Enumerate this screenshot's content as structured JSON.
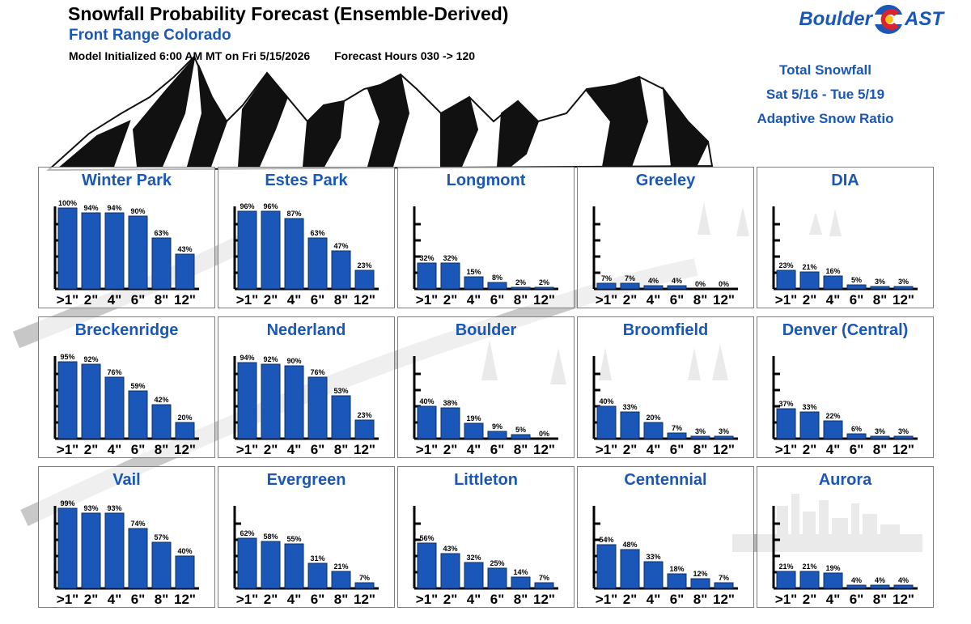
{
  "header": {
    "title": "Snowfall Probability Forecast (Ensemble-Derived)",
    "subtitle": "Front Range Colorado",
    "model_initialized": "Model Initialized 6:00 AM MT on Fri 5/15/2026",
    "forecast_hours": "Forecast Hours 030 -> 120"
  },
  "logo": {
    "left": "Boulder",
    "right": "AST",
    "colors": {
      "blue": "#1a57b8",
      "red": "#d9232e",
      "yellow": "#f5c21b"
    }
  },
  "info_box": {
    "line1": "Total Snowfall",
    "line2": "Sat 5/16 - Tue 5/19",
    "line3": "Adaptive Snow Ratio"
  },
  "colors": {
    "bar": "#1a57b8",
    "title": "#1a57b8",
    "panel_border": "#7d7d7d"
  },
  "chart_data": [
    {
      "type": "bar",
      "title": "Winter Park",
      "categories": [
        ">1\"",
        "2\"",
        "4\"",
        "6\"",
        "8\"",
        "12\""
      ],
      "values": [
        100,
        94,
        94,
        90,
        63,
        43
      ],
      "ylim": [
        0,
        100
      ]
    },
    {
      "type": "bar",
      "title": "Estes Park",
      "categories": [
        ">1\"",
        "2\"",
        "4\"",
        "6\"",
        "8\"",
        "12\""
      ],
      "values": [
        96,
        96,
        87,
        63,
        47,
        23
      ],
      "ylim": [
        0,
        100
      ]
    },
    {
      "type": "bar",
      "title": "Longmont",
      "categories": [
        ">1\"",
        "2\"",
        "4\"",
        "6\"",
        "8\"",
        "12\""
      ],
      "values": [
        32,
        32,
        15,
        8,
        2,
        2
      ],
      "ylim": [
        0,
        100
      ]
    },
    {
      "type": "bar",
      "title": "Greeley",
      "categories": [
        ">1\"",
        "2\"",
        "4\"",
        "6\"",
        "8\"",
        "12\""
      ],
      "values": [
        7,
        7,
        4,
        4,
        0,
        0
      ],
      "ylim": [
        0,
        100
      ]
    },
    {
      "type": "bar",
      "title": "DIA",
      "categories": [
        ">1\"",
        "2\"",
        "4\"",
        "6\"",
        "8\"",
        "12\""
      ],
      "values": [
        23,
        21,
        16,
        5,
        3,
        3
      ],
      "ylim": [
        0,
        100
      ]
    },
    {
      "type": "bar",
      "title": "Breckenridge",
      "categories": [
        ">1\"",
        "2\"",
        "4\"",
        "6\"",
        "8\"",
        "12\""
      ],
      "values": [
        95,
        92,
        76,
        59,
        42,
        20
      ],
      "ylim": [
        0,
        100
      ]
    },
    {
      "type": "bar",
      "title": "Nederland",
      "categories": [
        ">1\"",
        "2\"",
        "4\"",
        "6\"",
        "8\"",
        "12\""
      ],
      "values": [
        94,
        92,
        90,
        76,
        53,
        23
      ],
      "ylim": [
        0,
        100
      ]
    },
    {
      "type": "bar",
      "title": "Boulder",
      "categories": [
        ">1\"",
        "2\"",
        "4\"",
        "6\"",
        "8\"",
        "12\""
      ],
      "values": [
        40,
        38,
        19,
        9,
        5,
        0
      ],
      "ylim": [
        0,
        100
      ]
    },
    {
      "type": "bar",
      "title": "Broomfield",
      "categories": [
        ">1\"",
        "2\"",
        "4\"",
        "6\"",
        "8\"",
        "12\""
      ],
      "values": [
        40,
        33,
        20,
        7,
        3,
        3
      ],
      "ylim": [
        0,
        100
      ]
    },
    {
      "type": "bar",
      "title": "Denver (Central)",
      "categories": [
        ">1\"",
        "2\"",
        "4\"",
        "6\"",
        "8\"",
        "12\""
      ],
      "values": [
        37,
        33,
        22,
        6,
        3,
        3
      ],
      "ylim": [
        0,
        100
      ]
    },
    {
      "type": "bar",
      "title": "Vail",
      "categories": [
        ">1\"",
        "2\"",
        "4\"",
        "6\"",
        "8\"",
        "12\""
      ],
      "values": [
        99,
        93,
        93,
        74,
        57,
        40
      ],
      "ylim": [
        0,
        100
      ]
    },
    {
      "type": "bar",
      "title": "Evergreen",
      "categories": [
        ">1\"",
        "2\"",
        "4\"",
        "6\"",
        "8\"",
        "12\""
      ],
      "values": [
        62,
        58,
        55,
        31,
        21,
        7
      ],
      "ylim": [
        0,
        100
      ]
    },
    {
      "type": "bar",
      "title": "Littleton",
      "categories": [
        ">1\"",
        "2\"",
        "4\"",
        "6\"",
        "8\"",
        "12\""
      ],
      "values": [
        56,
        43,
        32,
        25,
        14,
        7
      ],
      "ylim": [
        0,
        100
      ]
    },
    {
      "type": "bar",
      "title": "Centennial",
      "categories": [
        ">1\"",
        "2\"",
        "4\"",
        "6\"",
        "8\"",
        "12\""
      ],
      "values": [
        54,
        48,
        33,
        18,
        12,
        7
      ],
      "ylim": [
        0,
        100
      ]
    },
    {
      "type": "bar",
      "title": "Aurora",
      "categories": [
        ">1\"",
        "2\"",
        "4\"",
        "6\"",
        "8\"",
        "12\""
      ],
      "values": [
        21,
        21,
        19,
        4,
        4,
        4
      ],
      "ylim": [
        0,
        100
      ]
    }
  ]
}
